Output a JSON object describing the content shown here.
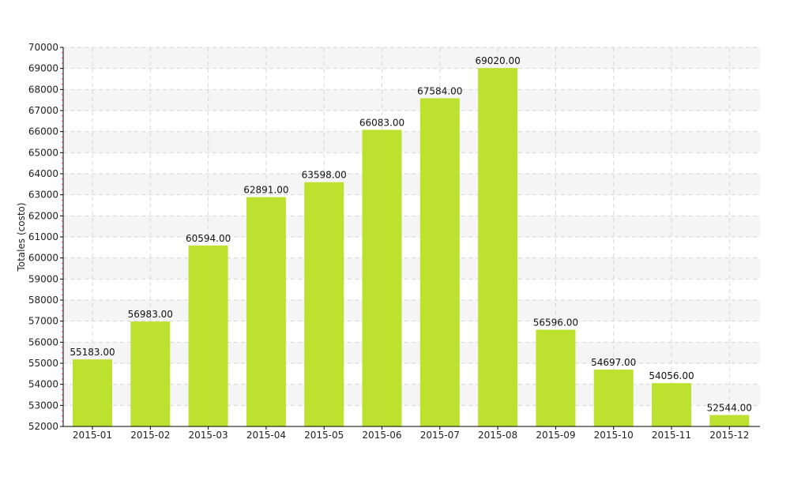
{
  "chart_data": {
    "type": "bar",
    "title": "",
    "xlabel": "",
    "ylabel": "Totales (costo)",
    "categories": [
      "2015-01",
      "2015-02",
      "2015-03",
      "2015-04",
      "2015-05",
      "2015-06",
      "2015-07",
      "2015-08",
      "2015-09",
      "2015-10",
      "2015-11",
      "2015-12"
    ],
    "values": [
      55183.0,
      56983.0,
      60594.0,
      62891.0,
      63598.0,
      66083.0,
      67584.0,
      69020.0,
      56596.0,
      54697.0,
      54056.0,
      52544.0
    ],
    "value_labels": [
      "55183.00",
      "56983.00",
      "60594.00",
      "62891.00",
      "63598.00",
      "66083.00",
      "67584.00",
      "69020.00",
      "56596.00",
      "54697.00",
      "54056.00",
      "52544.00"
    ],
    "ylim": [
      52000,
      70000
    ],
    "yticks": [
      52000,
      53000,
      54000,
      55000,
      56000,
      57000,
      58000,
      59000,
      60000,
      61000,
      62000,
      63000,
      64000,
      65000,
      66000,
      67000,
      68000,
      69000,
      70000
    ],
    "grid": true,
    "colors": {
      "bar": "#bce22f",
      "band": "#f5f5f5",
      "grid": "#d8d8d8",
      "axis": "#000000",
      "tick_mark": "#cc3355"
    }
  }
}
